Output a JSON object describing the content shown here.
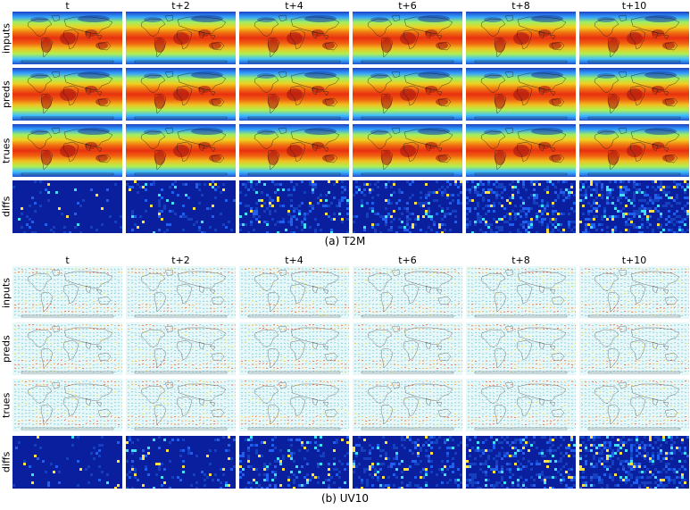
{
  "panels": [
    {
      "caption": "(a) T2M",
      "style": "temperature",
      "columns": [
        "t",
        "t+2",
        "t+4",
        "t+6",
        "t+8",
        "t+10"
      ],
      "rows": [
        "inputs",
        "preds",
        "trues",
        "diffs"
      ]
    },
    {
      "caption": "(b) UV10",
      "style": "wind",
      "columns": [
        "t",
        "t+2",
        "t+4",
        "t+6",
        "t+8",
        "t+10"
      ],
      "rows": [
        "inputs",
        "preds",
        "trues",
        "diffs"
      ]
    }
  ],
  "colors": {
    "jet_low": "#00007f",
    "jet_mid": "#7fff7f",
    "jet_high": "#7f0000",
    "diff_background": "#0a1f9e",
    "wind_background": "#e8f7f8"
  }
}
